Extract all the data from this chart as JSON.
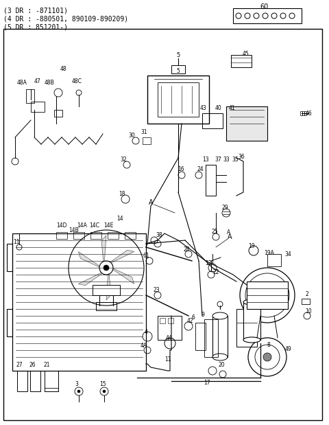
{
  "title_lines": [
    "(3 DR : -871101)",
    "(4 DR : -880501, 890109-890209)",
    "(5 DR : 851201-)"
  ],
  "part_label": "60",
  "bg_color": "#ffffff",
  "line_color": "#000000",
  "fig_width": 4.8,
  "fig_height": 6.19,
  "dpi": 100
}
